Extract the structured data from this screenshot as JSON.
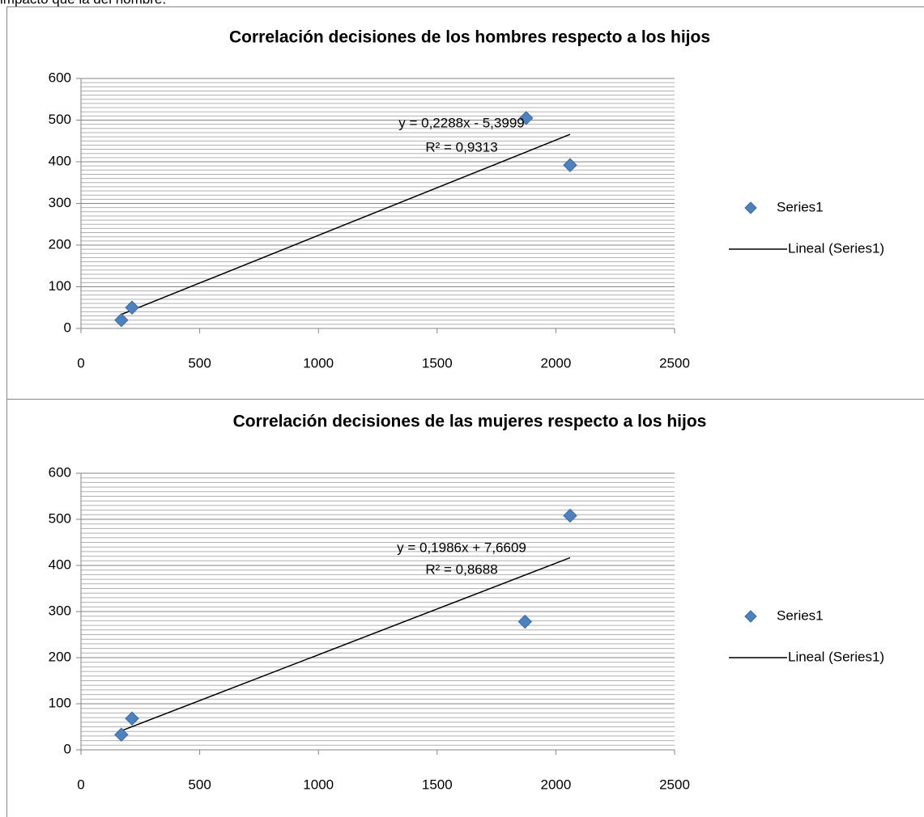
{
  "text_above": "impacto que la del hombre.",
  "chart_data": [
    {
      "type": "scatter",
      "title": "Correlación decisiones de los hombres respecto a los hijos",
      "series": [
        {
          "name": "Series1",
          "color": "#4f81bd",
          "x": [
            170,
            215,
            1875,
            2060
          ],
          "values": [
            20,
            50,
            505,
            392
          ]
        },
        {
          "name": "Lineal (Series1)",
          "color": "#000000",
          "x": [
            170,
            2060
          ],
          "values": [
            33.5,
            465.9
          ]
        }
      ],
      "annotations": [
        "y = 0,2288x - 5,3999",
        "R² = 0,9313"
      ],
      "xlim": [
        0,
        2500
      ],
      "xticks": [
        0,
        500,
        1000,
        1500,
        2000,
        2500
      ],
      "ylim": [
        0,
        600
      ],
      "yticks": [
        0,
        100,
        200,
        300,
        400,
        500,
        600
      ],
      "grid": true,
      "minor_grid_step": 10,
      "legend": "right"
    },
    {
      "type": "scatter",
      "title": "Correlación decisiones de las mujeres respecto a los hijos",
      "series": [
        {
          "name": "Series1",
          "color": "#4f81bd",
          "x": [
            170,
            215,
            1870,
            2060
          ],
          "values": [
            33,
            68,
            278,
            508
          ]
        },
        {
          "name": "Lineal (Series1)",
          "color": "#000000",
          "x": [
            170,
            2060
          ],
          "values": [
            41.4,
            416.8
          ]
        }
      ],
      "annotations": [
        "y = 0,1986x + 7,6609",
        "R² = 0,8688"
      ],
      "xlim": [
        0,
        2500
      ],
      "xticks": [
        0,
        500,
        1000,
        1500,
        2000,
        2500
      ],
      "ylim": [
        0,
        600
      ],
      "yticks": [
        0,
        100,
        200,
        300,
        400,
        500,
        600
      ],
      "grid": true,
      "minor_grid_step": 10,
      "legend": "right"
    }
  ]
}
